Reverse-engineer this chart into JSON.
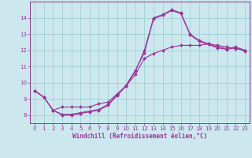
{
  "bg_color": "#cce8ee",
  "line_color": "#993399",
  "grid_color": "#99cccc",
  "xlabel": "Windchill (Refroidissement éolien,°C)",
  "xlim": [
    -0.5,
    23.5
  ],
  "ylim": [
    7.5,
    15.0
  ],
  "yticks": [
    8,
    9,
    10,
    11,
    12,
    13,
    14
  ],
  "xticks": [
    0,
    1,
    2,
    3,
    4,
    5,
    6,
    7,
    8,
    9,
    10,
    11,
    12,
    13,
    14,
    15,
    16,
    17,
    18,
    19,
    20,
    21,
    22,
    23
  ],
  "line1": {
    "x": [
      0,
      1,
      2,
      3,
      4,
      5,
      6,
      7,
      8,
      9,
      10,
      11,
      12,
      13,
      14,
      15,
      16,
      17,
      18,
      19,
      20,
      21,
      22,
      23
    ],
    "y": [
      9.5,
      9.1,
      8.3,
      8.0,
      8.0,
      8.1,
      8.2,
      8.3,
      8.6,
      9.2,
      9.8,
      10.7,
      12.0,
      14.0,
      14.2,
      14.5,
      14.3,
      13.0,
      12.6,
      12.4,
      12.2,
      12.1,
      12.2,
      12.0
    ]
  },
  "line2": {
    "x": [
      0,
      1,
      2,
      3,
      4,
      5,
      6,
      7,
      8,
      9,
      10,
      11,
      12,
      13,
      14,
      15,
      16,
      17,
      18,
      19,
      20,
      21,
      22,
      23
    ],
    "y": [
      9.5,
      9.1,
      8.3,
      8.05,
      8.05,
      8.15,
      8.25,
      8.35,
      8.65,
      9.25,
      9.85,
      10.75,
      11.85,
      13.95,
      14.15,
      14.45,
      14.25,
      12.95,
      12.55,
      12.35,
      12.15,
      12.05,
      12.15,
      11.95
    ]
  },
  "line3": {
    "x": [
      0,
      1,
      2,
      3,
      4,
      5,
      6,
      7,
      8,
      9,
      10,
      11,
      12,
      13,
      14,
      15,
      16,
      17,
      18,
      19,
      20,
      21,
      22,
      23
    ],
    "y": [
      9.5,
      9.1,
      8.3,
      8.5,
      8.5,
      8.5,
      8.5,
      8.7,
      8.8,
      9.3,
      9.8,
      10.5,
      11.5,
      11.8,
      12.0,
      12.2,
      12.3,
      12.3,
      12.3,
      12.4,
      12.3,
      12.2,
      12.1,
      12.0
    ]
  }
}
